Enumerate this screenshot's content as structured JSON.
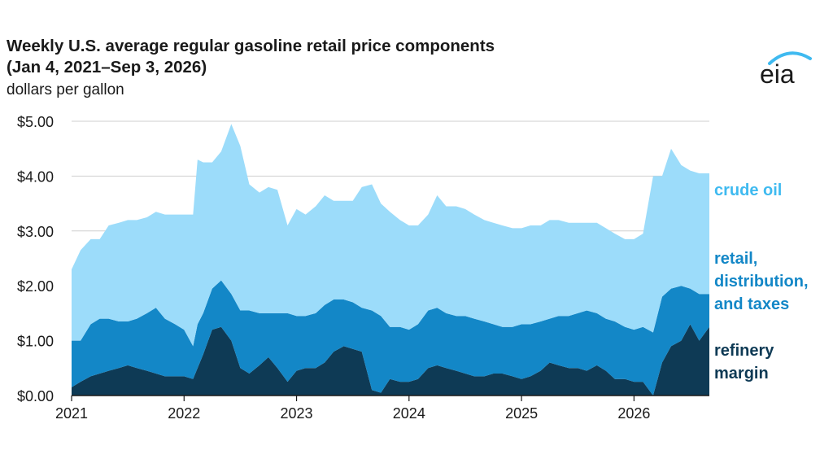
{
  "title_line1": "Weekly U.S. average regular gasoline retail price components",
  "title_line2": "(Jan 4, 2021–Sep 3, 2026)",
  "logo_text": "eia",
  "chart_data": {
    "type": "area",
    "stacked": true,
    "ylabel": "dollars per gallon",
    "ylim": [
      0,
      5
    ],
    "xlim": [
      2021.0,
      2026.67
    ],
    "y_ticks": [
      "$0.00",
      "$1.00",
      "$2.00",
      "$3.00",
      "$4.00",
      "$5.00"
    ],
    "y_tick_values": [
      0,
      1,
      2,
      3,
      4,
      5
    ],
    "x_ticks": [
      "2021",
      "2022",
      "2023",
      "2024",
      "2025",
      "2026"
    ],
    "x_tick_values": [
      2021,
      2022,
      2023,
      2024,
      2025,
      2026
    ],
    "grid": "horizontal",
    "legend": "right",
    "x": [
      2021.0,
      2021.08,
      2021.17,
      2021.25,
      2021.33,
      2021.42,
      2021.5,
      2021.58,
      2021.67,
      2021.75,
      2021.83,
      2021.92,
      2022.0,
      2022.08,
      2022.12,
      2022.17,
      2022.25,
      2022.33,
      2022.42,
      2022.5,
      2022.58,
      2022.67,
      2022.75,
      2022.83,
      2022.92,
      2023.0,
      2023.08,
      2023.17,
      2023.25,
      2023.33,
      2023.42,
      2023.5,
      2023.58,
      2023.67,
      2023.75,
      2023.83,
      2023.92,
      2024.0,
      2024.08,
      2024.17,
      2024.25,
      2024.33,
      2024.42,
      2024.5,
      2024.58,
      2024.67,
      2024.75,
      2024.83,
      2024.92,
      2025.0,
      2025.08,
      2025.17,
      2025.25,
      2025.33,
      2025.42,
      2025.5,
      2025.58,
      2025.67,
      2025.75,
      2025.83,
      2025.92,
      2026.0,
      2026.08,
      2026.17,
      2026.25,
      2026.33,
      2026.42,
      2026.5,
      2026.58,
      2026.67
    ],
    "series": [
      {
        "name": "refinery margin",
        "color": "#0e3a55",
        "values": [
          0.15,
          0.25,
          0.35,
          0.4,
          0.45,
          0.5,
          0.55,
          0.5,
          0.45,
          0.4,
          0.35,
          0.35,
          0.35,
          0.3,
          0.5,
          0.75,
          1.2,
          1.25,
          1.0,
          0.5,
          0.4,
          0.55,
          0.7,
          0.5,
          0.25,
          0.45,
          0.5,
          0.5,
          0.6,
          0.8,
          0.9,
          0.85,
          0.8,
          0.1,
          0.05,
          0.3,
          0.25,
          0.25,
          0.3,
          0.5,
          0.55,
          0.5,
          0.45,
          0.4,
          0.35,
          0.35,
          0.4,
          0.4,
          0.35,
          0.3,
          0.35,
          0.45,
          0.6,
          0.55,
          0.5,
          0.5,
          0.45,
          0.55,
          0.45,
          0.3,
          0.3,
          0.25,
          0.25,
          0.0,
          0.6,
          0.9,
          1.0,
          1.3,
          1.0,
          1.25
        ]
      },
      {
        "name": "retail, distribution, and taxes",
        "color": "#1387c7",
        "values": [
          0.85,
          0.75,
          0.95,
          1.0,
          0.95,
          0.85,
          0.8,
          0.9,
          1.05,
          1.2,
          1.05,
          0.95,
          0.85,
          0.6,
          0.8,
          0.75,
          0.75,
          0.85,
          0.85,
          1.05,
          1.15,
          0.95,
          0.8,
          1.0,
          1.25,
          1.0,
          0.95,
          1.0,
          1.05,
          0.95,
          0.85,
          0.85,
          0.8,
          1.45,
          1.4,
          0.95,
          1.0,
          0.95,
          1.0,
          1.05,
          1.05,
          1.0,
          1.0,
          1.05,
          1.05,
          1.0,
          0.9,
          0.85,
          0.9,
          1.0,
          0.95,
          0.9,
          0.8,
          0.9,
          0.95,
          1.0,
          1.1,
          0.95,
          0.95,
          1.05,
          0.95,
          0.95,
          1.0,
          1.15,
          1.2,
          1.05,
          1.0,
          0.65,
          0.85,
          0.6
        ]
      },
      {
        "name": "crude oil",
        "color": "#9cdcfa",
        "values": [
          1.3,
          1.65,
          1.55,
          1.45,
          1.7,
          1.8,
          1.85,
          1.8,
          1.75,
          1.75,
          1.9,
          2.0,
          2.1,
          2.4,
          3.0,
          2.75,
          2.3,
          2.35,
          3.1,
          3.0,
          2.3,
          2.2,
          2.3,
          2.25,
          1.6,
          1.95,
          1.85,
          1.95,
          2.0,
          1.8,
          1.8,
          1.85,
          2.2,
          2.3,
          2.05,
          2.1,
          1.95,
          1.9,
          1.8,
          1.75,
          2.05,
          1.95,
          2.0,
          1.95,
          1.9,
          1.85,
          1.85,
          1.85,
          1.8,
          1.75,
          1.8,
          1.75,
          1.8,
          1.75,
          1.7,
          1.65,
          1.6,
          1.65,
          1.65,
          1.6,
          1.6,
          1.65,
          1.7,
          2.85,
          2.2,
          2.55,
          2.2,
          2.15,
          2.2,
          2.2
        ]
      }
    ]
  }
}
